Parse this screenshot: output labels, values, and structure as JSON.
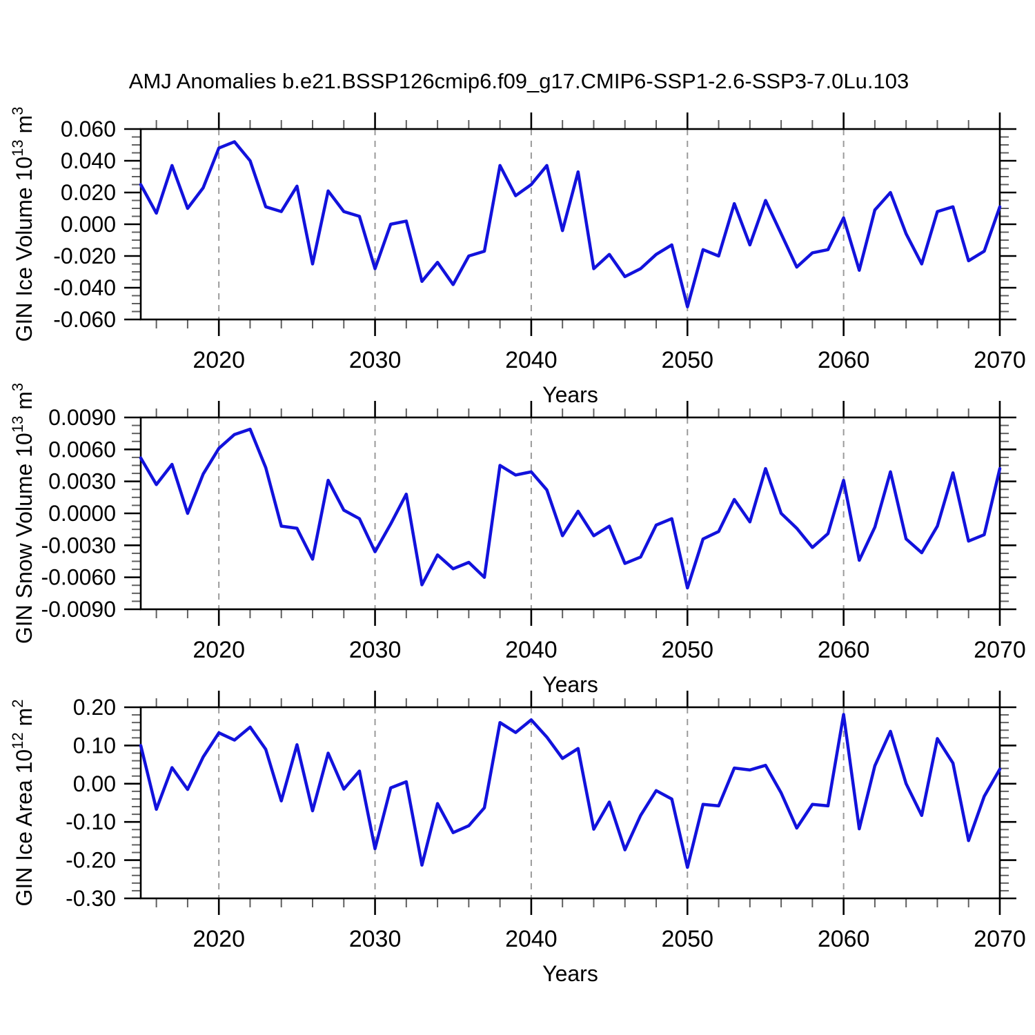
{
  "title": "AMJ Anomalies b.e21.BSSP126cmip6.f09_g17.CMIP6-SSP1-2.6-SSP3-7.0Lu.103",
  "line_color": "#1212dc",
  "x_axis": {
    "label": "Years",
    "range": [
      2015,
      2070
    ],
    "major_ticks": [
      2020,
      2030,
      2040,
      2050,
      2060,
      2070
    ],
    "major_tick_labels": [
      "2020",
      "2030",
      "2040",
      "2050",
      "2060",
      "2070"
    ],
    "minor_tick_step": 2,
    "gridlines": [
      2020,
      2030,
      2040,
      2050,
      2060
    ],
    "gridline_style": "dashed-gray-vertical"
  },
  "chart_data": [
    {
      "type": "line",
      "name": "gin-ice-volume",
      "ylabel": "GIN Ice Volume 10^13 m^3",
      "ylabel_parts": [
        [
          "t",
          "GIN Ice Volume 10"
        ],
        [
          "sup",
          "13"
        ],
        [
          "t",
          " m"
        ],
        [
          "sup",
          "3"
        ]
      ],
      "xlabel": "Years",
      "x_start": 2015,
      "x_end": 2070,
      "x_step": 1,
      "ylim": [
        -0.06,
        0.06
      ],
      "ytick_labels": [
        "0.060",
        "0.040",
        "0.020",
        "0.000",
        "-0.020",
        "-0.040",
        "-0.060"
      ],
      "ytick_minor_step": 0.005,
      "legend": "none",
      "values": [
        0.025,
        0.007,
        0.037,
        0.01,
        0.023,
        0.048,
        0.052,
        0.04,
        0.011,
        0.008,
        0.024,
        -0.025,
        0.021,
        0.008,
        0.005,
        -0.028,
        0.0,
        0.002,
        -0.036,
        -0.024,
        -0.038,
        -0.02,
        -0.017,
        0.037,
        0.018,
        0.025,
        0.037,
        -0.004,
        0.033,
        -0.028,
        -0.019,
        -0.033,
        -0.028,
        -0.019,
        -0.013,
        -0.052,
        -0.016,
        -0.02,
        0.013,
        -0.013,
        0.015,
        -0.006,
        -0.027,
        -0.018,
        -0.016,
        0.004,
        -0.029,
        0.009,
        0.02,
        -0.006,
        -0.025,
        0.008,
        0.011,
        -0.023,
        -0.017,
        0.011
      ]
    },
    {
      "type": "line",
      "name": "gin-snow-volume",
      "ylabel": "GIN Snow Volume 10^13 m^3",
      "ylabel_parts": [
        [
          "t",
          "GIN Snow Volume 10"
        ],
        [
          "sup",
          "13"
        ],
        [
          "t",
          " m"
        ],
        [
          "sup",
          "3"
        ]
      ],
      "xlabel": "Years",
      "x_start": 2015,
      "x_end": 2070,
      "x_step": 1,
      "ylim": [
        -0.009,
        0.009
      ],
      "ytick_labels": [
        "0.0090",
        "0.0060",
        "0.0030",
        "0.0000",
        "-0.0030",
        "-0.0060",
        "-0.0090"
      ],
      "ytick_minor_step": 0.00075,
      "legend": "none",
      "values": [
        0.0052,
        0.0027,
        0.0046,
        0.0,
        0.0037,
        0.0061,
        0.0074,
        0.0079,
        0.0043,
        -0.0012,
        -0.0014,
        -0.0043,
        0.0031,
        0.0003,
        -0.0005,
        -0.0036,
        -0.001,
        0.0018,
        -0.0067,
        -0.0039,
        -0.0052,
        -0.0046,
        -0.006,
        0.0045,
        0.0036,
        0.0039,
        0.0022,
        -0.0021,
        0.0002,
        -0.0021,
        -0.0012,
        -0.0047,
        -0.0041,
        -0.0011,
        -0.0005,
        -0.007,
        -0.0024,
        -0.0017,
        0.0013,
        -0.0008,
        0.0042,
        0.0,
        -0.0014,
        -0.0032,
        -0.0019,
        0.0031,
        -0.0044,
        -0.0013,
        0.0039,
        -0.0024,
        -0.0037,
        -0.0012,
        0.0038,
        -0.0026,
        -0.002,
        0.0042
      ]
    },
    {
      "type": "line",
      "name": "gin-ice-area",
      "ylabel": "GIN Ice Area 10^12 m^2",
      "ylabel_parts": [
        [
          "t",
          "GIN Ice Area 10"
        ],
        [
          "sup",
          "12"
        ],
        [
          "t",
          " m"
        ],
        [
          "sup",
          "2"
        ]
      ],
      "xlabel": "Years",
      "x_start": 2015,
      "x_end": 2070,
      "x_step": 1,
      "ylim": [
        -0.3,
        0.2
      ],
      "ytick_labels": [
        "0.20",
        "0.10",
        "0.00",
        "-0.10",
        "-0.20",
        "-0.30"
      ],
      "ytick_minor_step": 0.02,
      "legend": "none",
      "values": [
        0.1,
        -0.067,
        0.042,
        -0.015,
        0.07,
        0.133,
        0.114,
        0.148,
        0.09,
        -0.045,
        0.102,
        -0.071,
        0.08,
        -0.014,
        0.033,
        -0.17,
        -0.011,
        0.005,
        -0.213,
        -0.052,
        -0.128,
        -0.11,
        -0.063,
        0.16,
        0.134,
        0.167,
        0.122,
        0.066,
        0.092,
        -0.119,
        -0.048,
        -0.173,
        -0.083,
        -0.018,
        -0.04,
        -0.219,
        -0.054,
        -0.058,
        0.041,
        0.036,
        0.048,
        -0.024,
        -0.116,
        -0.054,
        -0.058,
        0.181,
        -0.118,
        0.047,
        0.137,
        0.0,
        -0.083,
        0.118,
        0.054,
        -0.149,
        -0.033,
        0.038
      ]
    }
  ]
}
